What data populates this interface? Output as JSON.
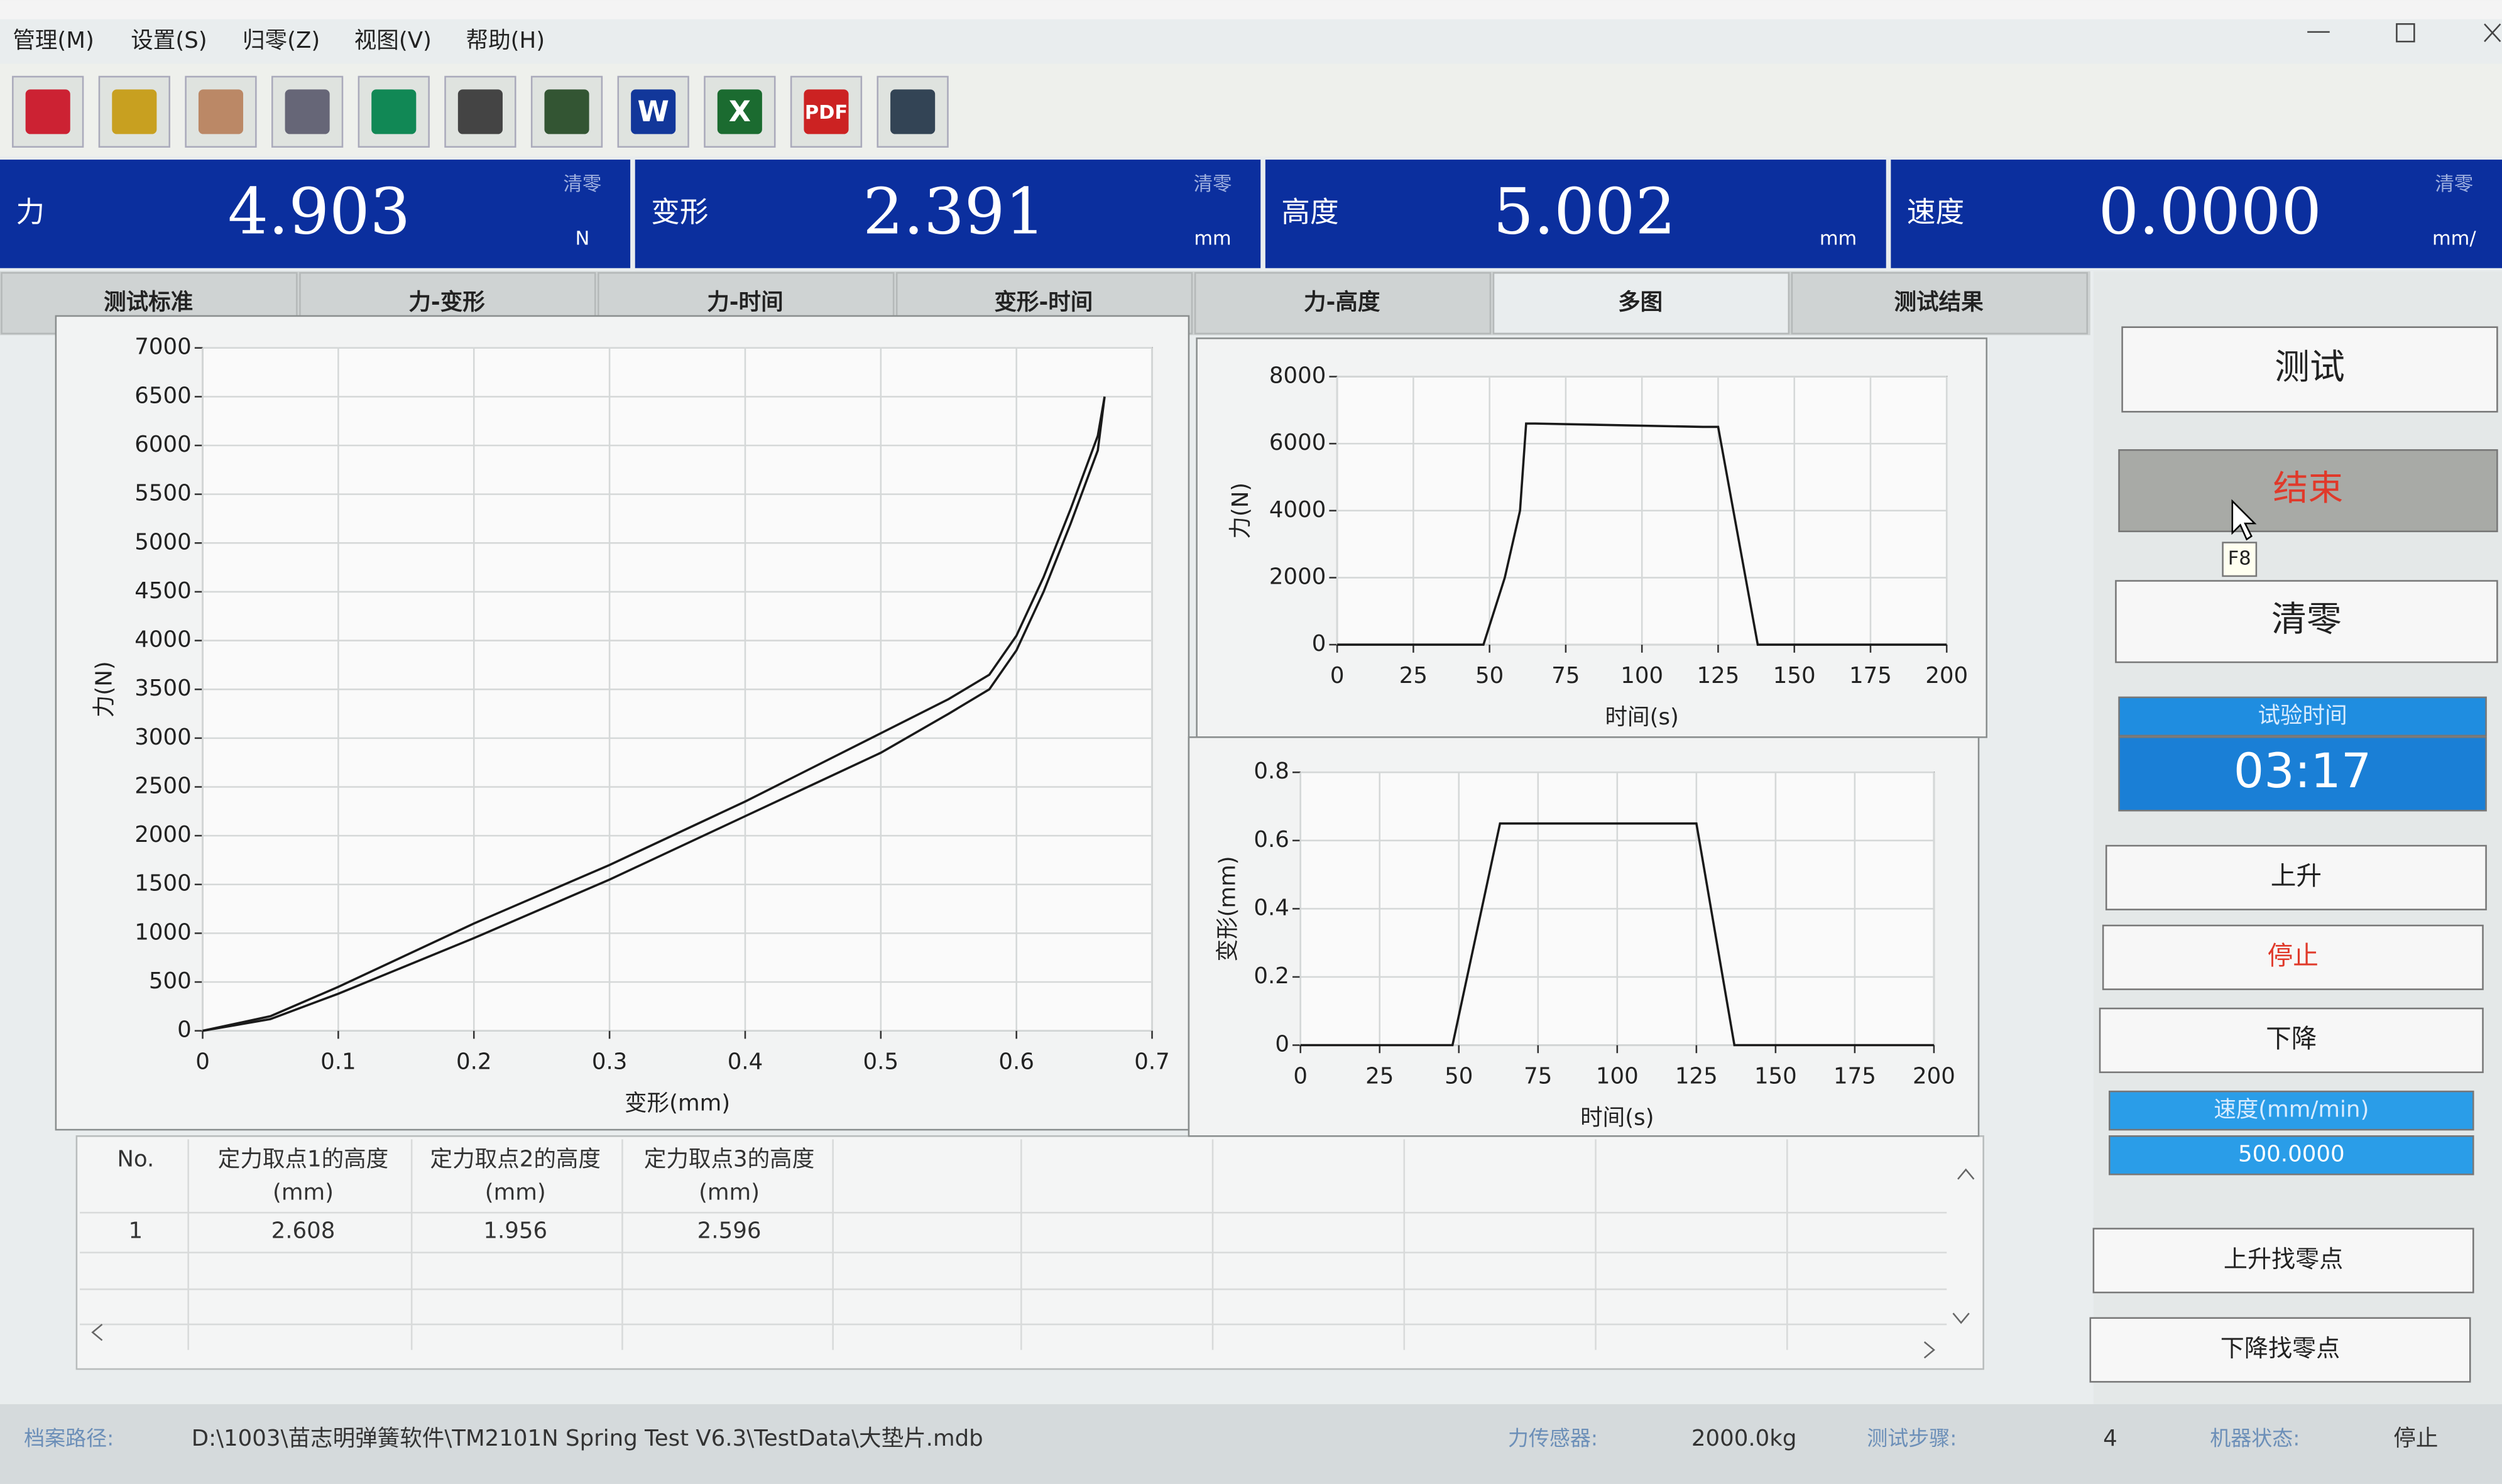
{
  "menu": [
    "管理(M)",
    "设置(S)",
    "归零(Z)",
    "视图(V)",
    "帮助(H)"
  ],
  "toolbar": [
    "W",
    "X",
    "PDF"
  ],
  "readouts": [
    {
      "label": "力",
      "value": "4.903",
      "clear": "清零",
      "unit": "N"
    },
    {
      "label": "变形",
      "value": "2.391",
      "clear": "清零",
      "unit": "mm"
    },
    {
      "label": "高度",
      "value": "5.002",
      "unit": "mm"
    },
    {
      "label": "速度",
      "value": "0.0000",
      "clear": "清零",
      "unit": "mm/"
    }
  ],
  "tabs": [
    "测试标准",
    "力-变形",
    "力-时间",
    "变形-时间",
    "力-高度",
    "多图",
    "测试结果"
  ],
  "chart_data": [
    {
      "type": "line",
      "x_label": "变形(mm)",
      "y_label": "力(N)",
      "x": [
        0,
        0.05,
        0.1,
        0.2,
        0.3,
        0.4,
        0.5,
        0.55,
        0.58,
        0.6,
        0.62,
        0.64,
        0.66,
        0.665
      ],
      "series": [
        {
          "color": "#1a1a1a",
          "values": [
            0,
            150,
            450,
            1100,
            1700,
            2350,
            3050,
            3400,
            3650,
            4050,
            4650,
            5350,
            6100,
            6500
          ]
        },
        {
          "color": "#1a1a1a",
          "values": [
            0,
            120,
            380,
            950,
            1550,
            2200,
            2850,
            3250,
            3500,
            3900,
            4500,
            5200,
            5950,
            6500
          ]
        }
      ],
      "xlim": [
        0,
        0.7
      ],
      "ylim": [
        0,
        7000
      ],
      "xticks": [
        0,
        0.1,
        0.2,
        0.3,
        0.4,
        0.5,
        0.6,
        0.7
      ],
      "yticks": [
        0,
        500,
        1000,
        1500,
        2000,
        2500,
        3000,
        3500,
        4000,
        4500,
        5000,
        5500,
        6000,
        6500,
        7000
      ],
      "grid": true
    },
    {
      "type": "line",
      "x_label": "时间(s)",
      "y_label": "力(N)",
      "x": [
        0,
        48,
        55,
        60,
        62,
        65,
        120,
        125,
        130,
        138,
        200
      ],
      "series": [
        {
          "color": "#1a1a1a",
          "values": [
            0,
            0,
            2000,
            4000,
            6600,
            6600,
            6500,
            6500,
            4000,
            0,
            0
          ]
        }
      ],
      "xlim": [
        0,
        200
      ],
      "ylim": [
        0,
        8000
      ],
      "xticks": [
        0,
        25,
        50,
        75,
        100,
        125,
        150,
        175,
        200
      ],
      "yticks": [
        0,
        2000,
        4000,
        6000,
        8000
      ],
      "grid": true
    },
    {
      "type": "line",
      "x_label": "时间(s)",
      "y_label": "变形(mm)",
      "x": [
        0,
        48,
        63,
        125,
        137,
        200
      ],
      "series": [
        {
          "color": "#1a1a1a",
          "values": [
            0,
            0,
            0.65,
            0.65,
            0,
            0
          ]
        }
      ],
      "xlim": [
        0,
        200
      ],
      "ylim": [
        0,
        0.8
      ],
      "xticks": [
        0,
        25,
        50,
        75,
        100,
        125,
        150,
        175,
        200
      ],
      "yticks": [
        0,
        0.2,
        0.4,
        0.6,
        0.8
      ],
      "grid": true
    }
  ],
  "table": {
    "headers": [
      {
        "text": "No."
      },
      {
        "text": "定力取点1的高度",
        "unit": "(mm)"
      },
      {
        "text": "定力取点2的高度",
        "unit": "(mm)"
      },
      {
        "text": "定力取点3的高度",
        "unit": "(mm)"
      }
    ],
    "rows": [
      [
        "1",
        "2.608",
        "1.956",
        "2.596"
      ]
    ]
  },
  "controls": {
    "test": "测试",
    "end": "结束",
    "tooltip": "F8",
    "zero": "清零",
    "timer_label": "试验时间",
    "timer": "03:17",
    "up": "上升",
    "stop": "停止",
    "down": "下降",
    "speed_label": "速度(mm/min)",
    "speed": "500.0000",
    "up_zero": "上升找零点",
    "down_zero": "下降找零点"
  },
  "status": [
    {
      "label": "档案路径:",
      "value": "D:\\1003\\苗志明弹簧软件\\TM2101N Spring Test V6.3\\TestData\\大垫片.mdb"
    },
    {
      "label": "力传感器:",
      "value": "2000.0kg"
    },
    {
      "label": "测试步骤:",
      "value": "4"
    },
    {
      "label": "机器状态:",
      "value": "停止"
    }
  ]
}
